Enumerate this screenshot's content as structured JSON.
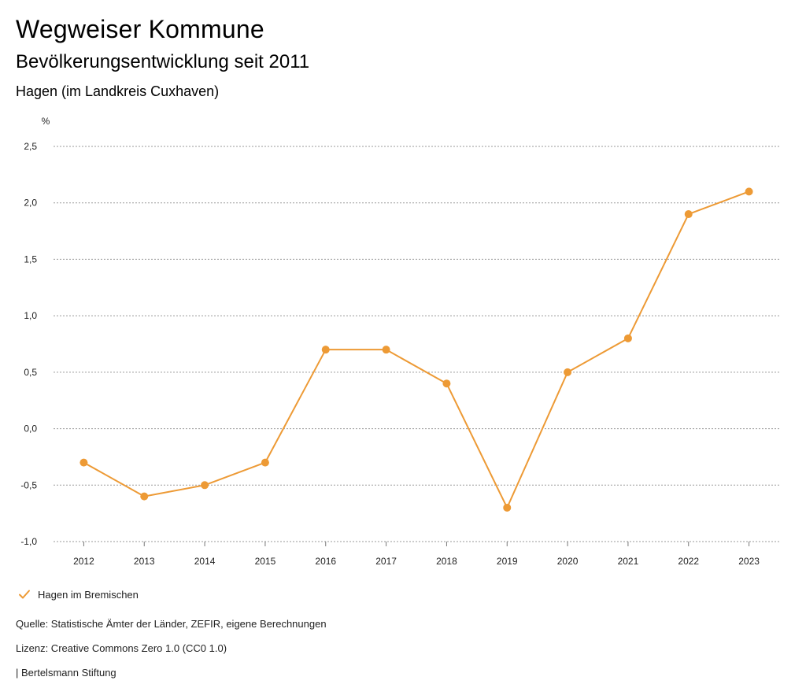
{
  "header": {
    "title": "Wegweiser Kommune",
    "subtitle": "Bevölkerungsentwicklung seit 2011",
    "region": "Hagen (im Landkreis Cuxhaven)"
  },
  "chart_data": {
    "type": "line",
    "title": "Bevölkerungsentwicklung seit 2011",
    "xlabel": "",
    "ylabel": "%",
    "categories": [
      "2012",
      "2013",
      "2014",
      "2015",
      "2016",
      "2017",
      "2018",
      "2019",
      "2020",
      "2021",
      "2022",
      "2023"
    ],
    "series": [
      {
        "name": "Hagen im Bremischen",
        "values": [
          -0.3,
          -0.6,
          -0.5,
          -0.3,
          0.7,
          0.7,
          0.4,
          -0.7,
          0.5,
          0.8,
          1.9,
          2.1
        ]
      }
    ],
    "ylim": [
      -1.0,
      2.5
    ],
    "yticks": [
      2.5,
      2.0,
      1.5,
      1.0,
      0.5,
      0.0,
      -0.5,
      -1.0
    ],
    "ytick_labels": [
      "2,5",
      "2,0",
      "1,5",
      "1,0",
      "0,5",
      "0,0",
      "-0,5",
      "-1,0"
    ],
    "grid": true,
    "legend_position": "bottom-left",
    "color": "#ED9A35"
  },
  "legend": {
    "label": "Hagen im Bremischen"
  },
  "footer": {
    "source": "Quelle: Statistische Ämter der Länder, ZEFIR, eigene Berechnungen",
    "license": "Lizenz: Creative Commons Zero 1.0 (CC0 1.0)",
    "brand": "| Bertelsmann Stiftung"
  }
}
